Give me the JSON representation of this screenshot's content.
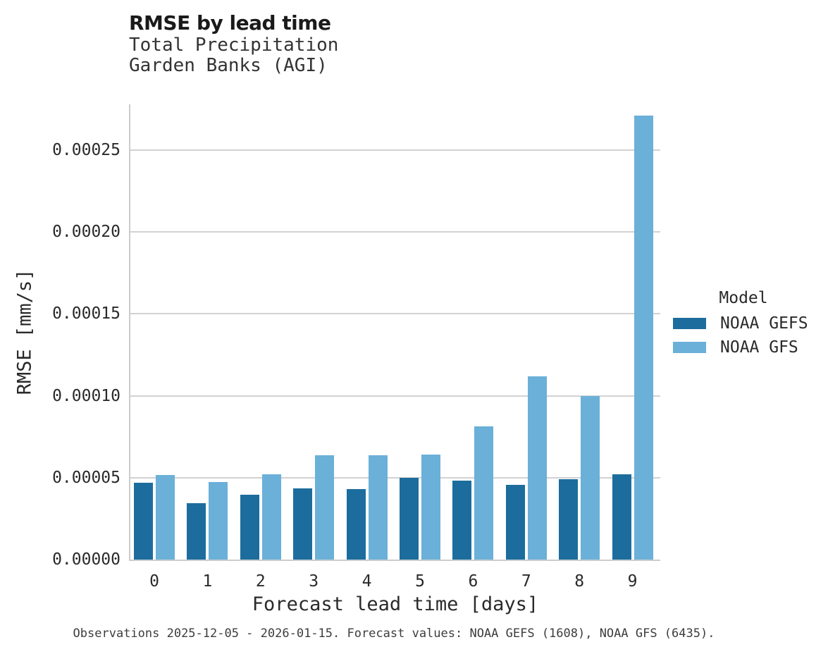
{
  "caption": "Observations 2025-12-05 - 2026-01-15. Forecast values: NOAA GEFS (1608), NOAA GFS (6435).",
  "colors": {
    "gefs_dark_blue": "#1c6d9d",
    "gfs_light_blue": "#6bb0d8",
    "gridline": "#d2d2d2",
    "spine": "#cccccc",
    "title_text": "#1a1a1a",
    "subtitle_text": "#333333",
    "axis_text": "#2a2a2a",
    "caption_text": "#3d3d3d"
  },
  "chart_data": {
    "type": "bar",
    "title": "RMSE by lead time",
    "subtitle_lines": [
      "Total Precipitation",
      "Garden Banks (AGI)"
    ],
    "xlabel": "Forecast lead time [days]",
    "ylabel": "RMSE [mm/s]",
    "categories": [
      "0",
      "1",
      "2",
      "3",
      "4",
      "5",
      "6",
      "7",
      "8",
      "9"
    ],
    "series": [
      {
        "name": "NOAA GEFS",
        "color": "#1c6d9d",
        "values": [
          4.7e-05,
          3.45e-05,
          3.95e-05,
          4.35e-05,
          4.3e-05,
          5e-05,
          4.8e-05,
          4.55e-05,
          4.9e-05,
          5.2e-05
        ]
      },
      {
        "name": "NOAA GFS",
        "color": "#6bb0d8",
        "values": [
          5.15e-05,
          4.75e-05,
          5.2e-05,
          6.35e-05,
          6.35e-05,
          6.4e-05,
          8.15e-05,
          0.000112,
          0.0001,
          0.000271
        ]
      }
    ],
    "yticks": [
      0,
      5e-05,
      0.0001,
      0.00015,
      0.0002,
      0.00025
    ],
    "ytick_labels": [
      "0.00000",
      "0.00005",
      "0.00010",
      "0.00015",
      "0.00020",
      "0.00025"
    ],
    "ylim": [
      0,
      0.000278
    ],
    "grid": "horizontal",
    "legend_title": "Model",
    "legend_position": "right"
  }
}
